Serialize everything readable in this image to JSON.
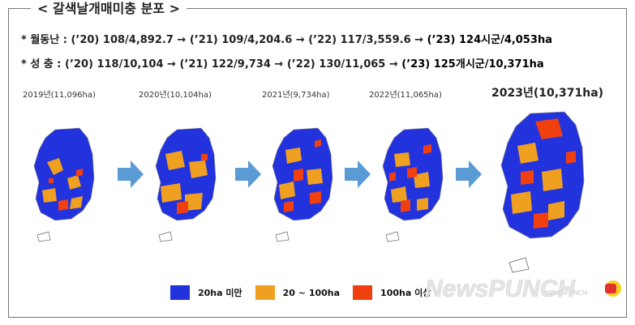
{
  "title": "< 갈색날개매미충 분포 >",
  "lines": [
    {
      "text": "* 월동난 : (’20) 108/4,892.7 → (’21) 109/4,204.6 → (’22) 117/3,559.6 → ",
      "highlight": "(’23) 124시군/4,053ha"
    },
    {
      "text": "* 성   충 : (’20) 118/10,104 → (’21) 122/9,734 → (’22) 130/11,065 → ",
      "highlight": "(’23) 125개시군/10,371ha"
    }
  ],
  "years": [
    {
      "label": "2019년(11,096ha)"
    },
    {
      "label": "2020년(10,104ha)"
    },
    {
      "label": "2021년(9,734ha)"
    },
    {
      "label": "2022년(11,065ha)"
    },
    {
      "label": "2023년(10,371ha)"
    }
  ],
  "legend": [
    {
      "label": "20ha 미만",
      "color": "#2233dd"
    },
    {
      "label": "20 ~ 100ha",
      "color": "#f0a020"
    },
    {
      "label": "100ha 이상",
      "color": "#f04010"
    }
  ],
  "watermark": {
    "text": "NewsPUNCH",
    "small": "NEWSPUNCH"
  },
  "colors": {
    "arrow": "#5b9bd5",
    "blue": "#2233dd",
    "orange": "#f0a020",
    "red": "#f04010"
  }
}
